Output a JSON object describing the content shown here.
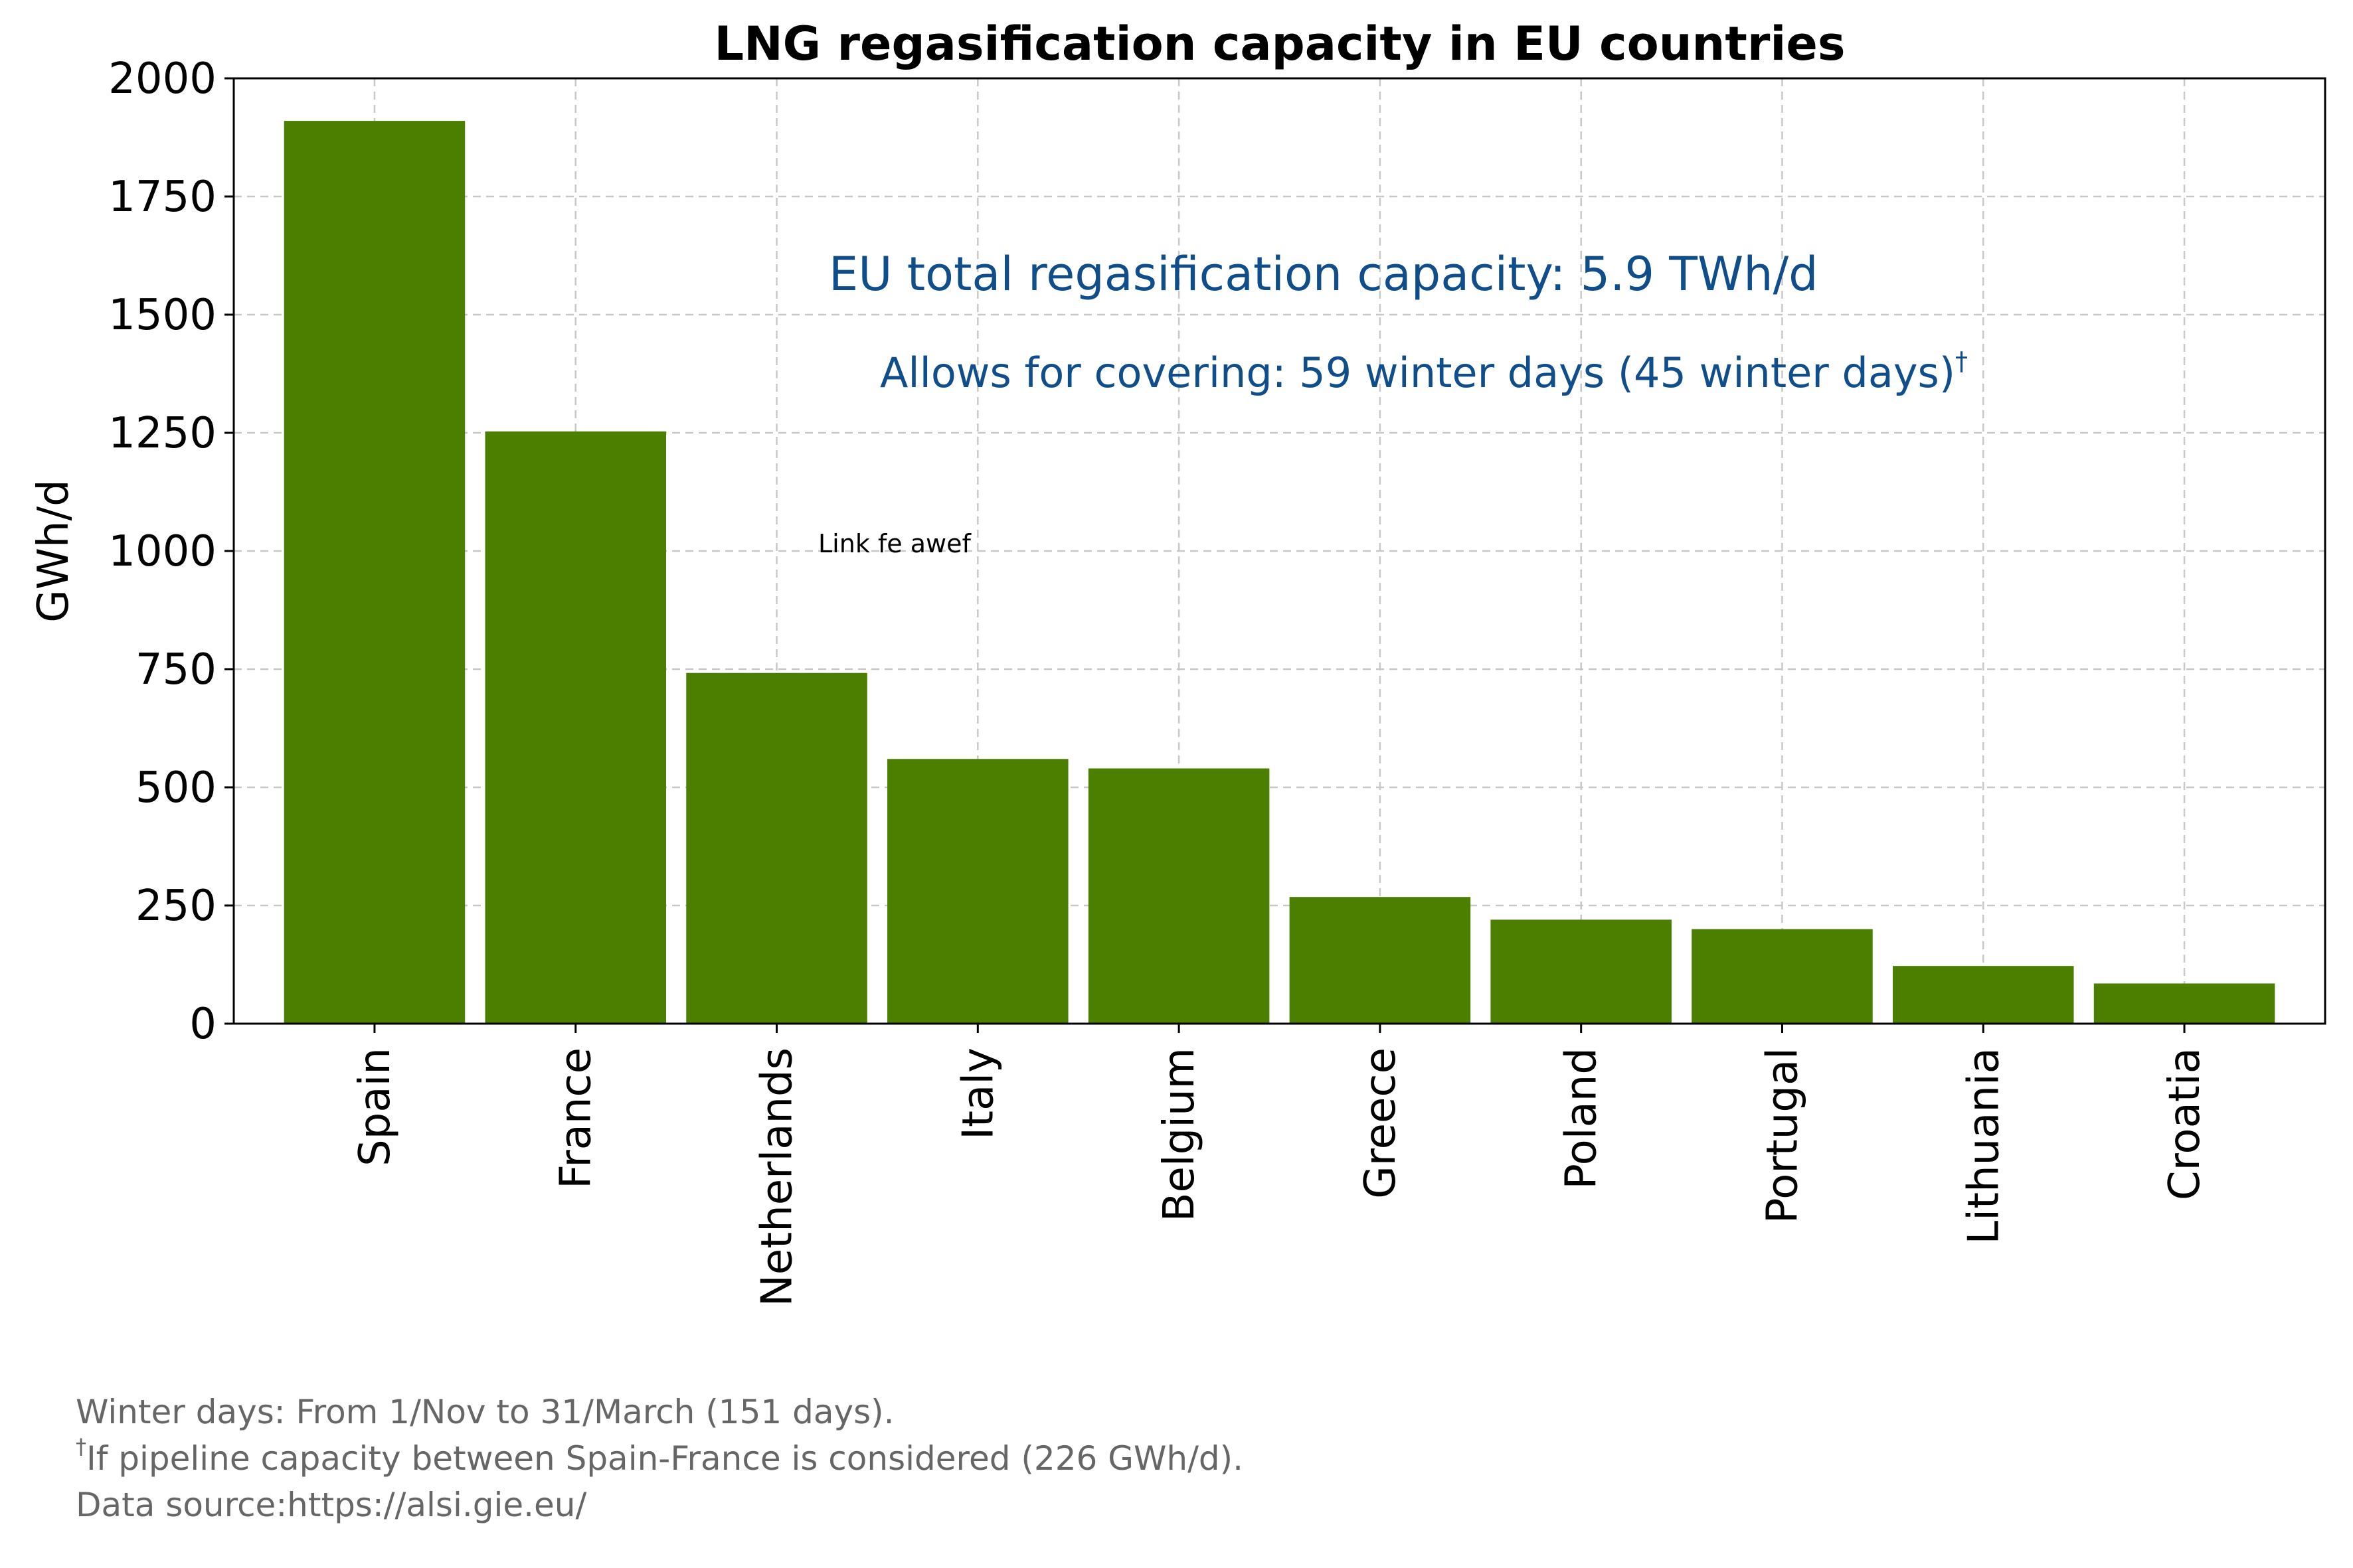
{
  "chart_data": {
    "type": "bar",
    "title": "LNG regasification capacity in EU countries",
    "xlabel": "",
    "ylabel": "GWh/d",
    "categories": [
      "Spain",
      "France",
      "Netherlands",
      "Italy",
      "Belgium",
      "Greece",
      "Poland",
      "Portugal",
      "Lithuania",
      "Croatia"
    ],
    "values": [
      1910,
      1253,
      742,
      560,
      540,
      268,
      220,
      200,
      122,
      85
    ],
    "ylim": [
      0,
      2000
    ],
    "yticks": [
      "0",
      "250",
      "500",
      "750",
      "1000",
      "1250",
      "1500",
      "1750",
      "2000"
    ],
    "ytick_values": [
      0,
      250,
      500,
      750,
      1000,
      1250,
      1500,
      1750,
      2000
    ],
    "grid": true,
    "bar_color": "#4C7F00",
    "annotation_color": "#104E8B",
    "annotations": {
      "total": "EU total regasification capacity: 5.9 TWh/d",
      "covering": "Allows for covering: 59 winter days (45 winter days)",
      "covering_sup": "†",
      "link": "Link fe awef"
    },
    "footnotes": {
      "line1": "Winter days: From 1/Nov to 31/March (151 days).",
      "line2_sup": "†",
      "line2": "If pipeline capacity between Spain-France is considered (226 GWh/d).",
      "line3": "Data source:https://alsi.gie.eu/"
    }
  }
}
